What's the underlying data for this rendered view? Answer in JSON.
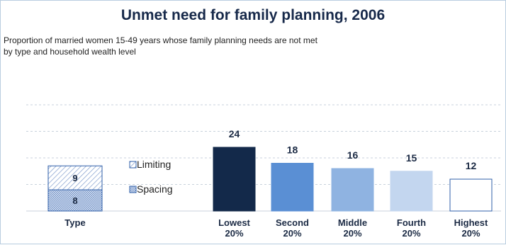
{
  "title": "Unmet need for family planning, 2006",
  "subtitle_lines": [
    "Proportion of married women 15-49 years whose family planning needs are not met",
    "by type and household wealth level"
  ],
  "colors": {
    "title": "#17294a",
    "bar_outline": "#2f5fa8",
    "grid": "#c8d2dc",
    "wealth": [
      "#13294a",
      "#5a8fd4",
      "#8fb3e1",
      "#c3d6ef",
      "#ffffff"
    ],
    "spacing_fill": "#cdd9ec",
    "limiting_fill": "#ffffff"
  },
  "chart_data": {
    "type": "bar",
    "title": "Unmet need for family planning, 2006",
    "subtitle": "Proportion of married women 15-49 years whose family planning needs are not met by type and household wealth level",
    "grid": true,
    "ylim": [
      0,
      40
    ],
    "type_bar": {
      "label": "Type",
      "stacked": true,
      "segments": [
        {
          "name": "Spacing",
          "value": 8
        },
        {
          "name": "Limiting",
          "value": 9
        }
      ]
    },
    "legend": [
      "Limiting",
      "Spacing"
    ],
    "categories": [
      [
        "Lowest",
        "20%"
      ],
      [
        "Second",
        "20%"
      ],
      [
        "Middle",
        "20%"
      ],
      [
        "Fourth",
        "20%"
      ],
      [
        "Highest",
        "20%"
      ]
    ],
    "values": [
      24,
      18,
      16,
      15,
      12
    ]
  }
}
